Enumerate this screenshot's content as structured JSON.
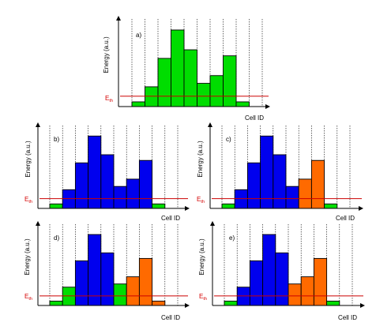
{
  "figure": {
    "colors": {
      "green": "#00dd00",
      "blue": "#0000ee",
      "orange": "#ff6a00",
      "threshold": "#cc0000",
      "axis": "#000000",
      "grid": "#000000"
    },
    "threshold_level": 1.2,
    "y_max": 10,
    "panels": [
      {
        "label": "a)",
        "ylabel": "Energy (a.u.)",
        "xlabel": "Cell ID",
        "threshold_label": "E",
        "threshold_sub": "th",
        "bars": [
          {
            "h": 0.55,
            "c": "green"
          },
          {
            "h": 2.3,
            "c": "green"
          },
          {
            "h": 5.6,
            "c": "green"
          },
          {
            "h": 8.9,
            "c": "green"
          },
          {
            "h": 6.6,
            "c": "green"
          },
          {
            "h": 2.7,
            "c": "green"
          },
          {
            "h": 3.6,
            "c": "green"
          },
          {
            "h": 5.9,
            "c": "green"
          },
          {
            "h": 0.55,
            "c": "green"
          }
        ]
      },
      {
        "label": "b)",
        "ylabel": "Energy (a.u.)",
        "xlabel": "Cell ID",
        "threshold_label": "E",
        "threshold_sub": "th",
        "bars": [
          {
            "h": 0.55,
            "c": "green"
          },
          {
            "h": 2.3,
            "c": "blue"
          },
          {
            "h": 5.6,
            "c": "blue"
          },
          {
            "h": 8.9,
            "c": "blue"
          },
          {
            "h": 6.6,
            "c": "blue"
          },
          {
            "h": 2.7,
            "c": "blue"
          },
          {
            "h": 3.6,
            "c": "blue"
          },
          {
            "h": 5.9,
            "c": "blue"
          },
          {
            "h": 0.55,
            "c": "green"
          }
        ]
      },
      {
        "label": "c)",
        "ylabel": "Energy (a.u.)",
        "xlabel": "Cell ID",
        "threshold_label": "E",
        "threshold_sub": "th",
        "bars": [
          {
            "h": 0.55,
            "c": "green"
          },
          {
            "h": 2.3,
            "c": "blue"
          },
          {
            "h": 5.6,
            "c": "blue"
          },
          {
            "h": 8.9,
            "c": "blue"
          },
          {
            "h": 6.6,
            "c": "blue"
          },
          {
            "h": 2.7,
            "c": "blue"
          },
          {
            "h": 3.6,
            "c": "orange"
          },
          {
            "h": 5.9,
            "c": "orange"
          },
          {
            "h": 0.55,
            "c": "green"
          }
        ]
      },
      {
        "label": "d)",
        "ylabel": "Energy (a.u.)",
        "xlabel": "Cell ID",
        "threshold_label": "E",
        "threshold_sub": "th",
        "bars": [
          {
            "h": 0.55,
            "c": "green"
          },
          {
            "h": 2.3,
            "c": "green"
          },
          {
            "h": 5.6,
            "c": "blue"
          },
          {
            "h": 8.9,
            "c": "blue"
          },
          {
            "h": 6.6,
            "c": "blue"
          },
          {
            "h": 2.7,
            "c": "green"
          },
          {
            "h": 3.6,
            "c": "orange"
          },
          {
            "h": 5.9,
            "c": "orange"
          },
          {
            "h": 0.55,
            "c": "orange"
          }
        ]
      },
      {
        "label": "e)",
        "ylabel": "Energy (a.u.)",
        "xlabel": "Cell ID",
        "threshold_label": "E",
        "threshold_sub": "th",
        "bars": [
          {
            "h": 0.55,
            "c": "green"
          },
          {
            "h": 2.3,
            "c": "blue"
          },
          {
            "h": 5.6,
            "c": "blue"
          },
          {
            "h": 8.9,
            "c": "blue"
          },
          {
            "h": 6.6,
            "c": "blue"
          },
          {
            "h": 2.7,
            "c": "orange"
          },
          {
            "h": 3.6,
            "c": "orange"
          },
          {
            "h": 5.9,
            "c": "orange"
          },
          {
            "h": 0.55,
            "c": "green"
          }
        ]
      }
    ]
  }
}
